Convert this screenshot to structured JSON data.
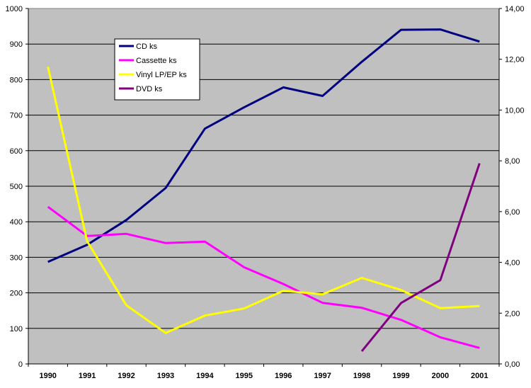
{
  "chart_data": {
    "type": "line",
    "categories": [
      "1990",
      "1991",
      "1992",
      "1993",
      "1994",
      "1995",
      "1996",
      "1997",
      "1998",
      "1999",
      "2000",
      "2001"
    ],
    "series": [
      {
        "name": "CD ks",
        "axis": "left",
        "color": "#000080",
        "values": [
          287,
          335,
          405,
          495,
          662,
          722,
          778,
          754,
          850,
          940,
          941,
          907
        ]
      },
      {
        "name": "Cassette ks",
        "axis": "left",
        "color": "#ff00ff",
        "values": [
          442,
          360,
          366,
          340,
          344,
          272,
          225,
          172,
          158,
          124,
          75,
          45
        ]
      },
      {
        "name": "Vinyl LP/EP ks",
        "axis": "left",
        "color": "#ffff00",
        "values": [
          836,
          345,
          165,
          87,
          136,
          156,
          206,
          196,
          242,
          208,
          157,
          163
        ]
      },
      {
        "name": "DVD ks",
        "axis": "right",
        "color": "#800080",
        "values": [
          null,
          null,
          null,
          null,
          null,
          null,
          null,
          null,
          0.5,
          2.4,
          3.3,
          7.9
        ]
      }
    ],
    "ylim_left": [
      0,
      1000
    ],
    "ylim_right": [
      0,
      14
    ],
    "yticks_left": [
      "0",
      "100",
      "200",
      "300",
      "400",
      "500",
      "600",
      "700",
      "800",
      "900",
      "1000"
    ],
    "yticks_right": [
      "0,00",
      "2,00",
      "4,00",
      "6,00",
      "8,00",
      "10,00",
      "12,00",
      "14,00"
    ],
    "grid": true,
    "plot_background": "#c0c0c0",
    "legend_position": "top-left-inside"
  }
}
